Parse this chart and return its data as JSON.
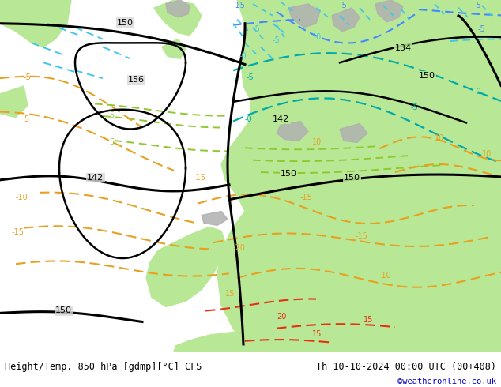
{
  "title_left": "Height/Temp. 850 hPa [gdmp][°C] CFS",
  "title_right": "Th 10-10-2024 00:00 UTC (00+408)",
  "copyright": "©weatheronline.co.uk",
  "bg_color": "#d8d8d8",
  "land_green": "#b8e896",
  "land_gray": "#b0b0b0",
  "sea_color": "#d8d8d8",
  "fig_width": 6.34,
  "fig_height": 4.9,
  "bar_color": "#ffffff",
  "black": "#000000",
  "orange": "#e8a020",
  "orange_red": "#e83010",
  "cyan_dark": "#00aaaa",
  "cyan_light": "#40c8e8",
  "blue": "#4488ff",
  "lime": "#90c830",
  "font_size_label": 7,
  "font_size_bottom": 8.5,
  "font_size_copyright": 7.5
}
